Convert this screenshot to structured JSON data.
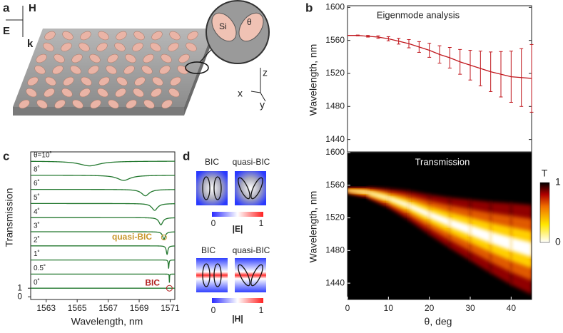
{
  "panel_labels": [
    "a",
    "b",
    "c",
    "d"
  ],
  "panel_a": {
    "axes_left": [
      "H",
      "E",
      "k"
    ],
    "inset": [
      "Si",
      "θ"
    ],
    "axes_right": [
      "z",
      "x",
      "y"
    ]
  },
  "panel_d": {
    "e_field": {
      "titles": [
        "BIC",
        "quasi-BIC"
      ],
      "ticks": [
        "0",
        "1"
      ],
      "label": "|E|"
    },
    "h_field": {
      "titles": [
        "BIC",
        "quasi-BIC"
      ],
      "ticks": [
        "0",
        "1"
      ],
      "label": "|H|"
    }
  },
  "chart_data": [
    {
      "type": "errorbar",
      "title": "Eigenmode analysis",
      "y_label": "Wavelength, nm",
      "x": [
        0,
        2.5,
        5,
        7.5,
        10,
        12.5,
        15,
        17.5,
        20,
        22.5,
        25,
        27.5,
        30,
        32.5,
        35,
        37.5,
        40,
        42.5,
        45
      ],
      "series": [
        {
          "color": "#c0161c",
          "values": [
            1566,
            1566,
            1565,
            1564,
            1562,
            1559,
            1556,
            1552,
            1548,
            1543,
            1539,
            1534,
            1530,
            1526,
            1522,
            1519,
            1516,
            1515,
            1514
          ],
          "errors": [
            0,
            0.5,
            1,
            1.5,
            2.5,
            3.5,
            5,
            6.5,
            8.5,
            10.5,
            12.5,
            15,
            18,
            21,
            24,
            27.5,
            31,
            35,
            41
          ]
        }
      ],
      "xlim": [
        0,
        45
      ],
      "ylim": [
        1425,
        1602
      ],
      "yticks": [
        1440,
        1480,
        1520,
        1560,
        1600
      ]
    },
    {
      "type": "heatmap",
      "title": "Transmission",
      "y_label": "Wavelength, nm",
      "x_label": "θ, deg",
      "xlim": [
        0,
        45
      ],
      "xticks": [
        0,
        10,
        20,
        30,
        40
      ],
      "ylim": [
        1420,
        1600
      ],
      "yticks": [
        1440,
        1480,
        1520,
        1560,
        1600
      ],
      "x": [
        0,
        5,
        10,
        15,
        20,
        25,
        30,
        35,
        40,
        45
      ],
      "resonance_center": [
        1554,
        1551,
        1544,
        1535,
        1524,
        1514,
        1505,
        1496,
        1488,
        1481
      ],
      "resonance_width": [
        2,
        4,
        7,
        11,
        15,
        19,
        23,
        27,
        31,
        34
      ],
      "colorbar": {
        "label": "T",
        "ticks": [
          0,
          1
        ]
      }
    },
    {
      "type": "line",
      "x_label": "Wavelength, nm",
      "y_label": "Transmission",
      "xlim": [
        1562,
        1571.3
      ],
      "xticks": [
        1563,
        1565,
        1567,
        1569,
        1571
      ],
      "yticks": [
        0,
        1
      ],
      "color": "#23782f",
      "series": [
        {
          "name": "θ=10˚",
          "center": 1565.8,
          "linewidth": 1.6,
          "depth": 0.55
        },
        {
          "name": "8˚",
          "center": 1568.0,
          "linewidth": 1.0,
          "depth": 0.6
        },
        {
          "name": "6˚",
          "center": 1569.4,
          "linewidth": 0.6,
          "depth": 0.75
        },
        {
          "name": "5˚",
          "center": 1570.0,
          "linewidth": 0.45,
          "depth": 0.8
        },
        {
          "name": "4˚",
          "center": 1570.4,
          "linewidth": 0.3,
          "depth": 0.85
        },
        {
          "name": "3˚",
          "center": 1570.6,
          "linewidth": 0.2,
          "depth": 0.9
        },
        {
          "name": "2˚",
          "center": 1570.8,
          "linewidth": 0.12,
          "depth": 1
        },
        {
          "name": "1˚",
          "center": 1570.9,
          "linewidth": 0.05,
          "depth": 1
        },
        {
          "name": "0.5˚",
          "center": 1570.95,
          "linewidth": 0.02,
          "depth": 1
        },
        {
          "name": "0˚"
        }
      ],
      "annotations": [
        {
          "text": "quasi-BIC",
          "color": "#c8962a"
        },
        {
          "text": "BIC",
          "color": "#b22222"
        }
      ]
    }
  ]
}
